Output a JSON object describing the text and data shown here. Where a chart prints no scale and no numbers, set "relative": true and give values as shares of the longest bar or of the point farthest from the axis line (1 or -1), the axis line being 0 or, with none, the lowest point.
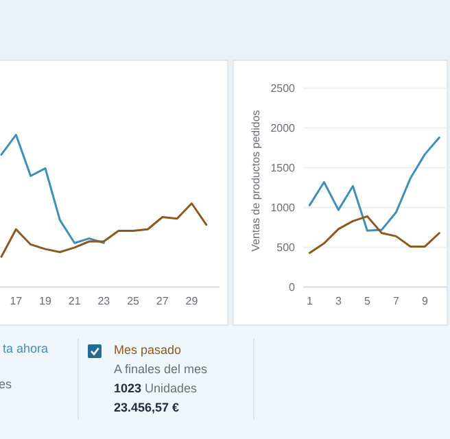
{
  "chart_data": [
    {
      "type": "line",
      "relative": true,
      "legend": "bottom",
      "categories": [
        null,
        "17",
        null,
        "19",
        null,
        "21",
        null,
        "23",
        null,
        "25",
        null,
        "27",
        null,
        "29",
        null
      ],
      "series": [
        {
          "name": "ta ahora",
          "color": "#3f8fb8",
          "values": [
            0.87,
            1,
            0.73,
            0.78,
            0.44,
            0.29,
            0.32,
            0.29,
            null,
            null,
            null,
            null,
            null,
            null,
            null
          ]
        },
        {
          "name": "Mes pasado",
          "color": "#8b5a1e",
          "values": [
            0.2,
            0.38,
            0.28,
            0.25,
            0.23,
            0.26,
            0.3,
            0.3,
            0.37,
            0.37,
            0.38,
            0.46,
            0.45,
            0.55,
            0.41
          ]
        }
      ],
      "annotations": [
        "es",
        "A finales del mes",
        "1023 Unidades",
        "23.456,57 €"
      ]
    },
    {
      "type": "line",
      "grid": true,
      "ylabel": "Ventas de productos pedidos",
      "ylim": [
        0,
        2500
      ],
      "yticks": [
        0,
        500,
        1000,
        1500,
        2000,
        2500
      ],
      "categories": [
        "1",
        null,
        "3",
        null,
        "5",
        null,
        "7",
        null,
        "9",
        null
      ],
      "series": [
        {
          "color": "#3f8fb8",
          "values": [
            1030,
            1320,
            970,
            1270,
            710,
            720,
            940,
            1370,
            1670,
            1880
          ]
        },
        {
          "color": "#8b5a1e",
          "values": [
            430,
            550,
            730,
            830,
            890,
            680,
            640,
            510,
            510,
            680
          ]
        }
      ]
    }
  ]
}
